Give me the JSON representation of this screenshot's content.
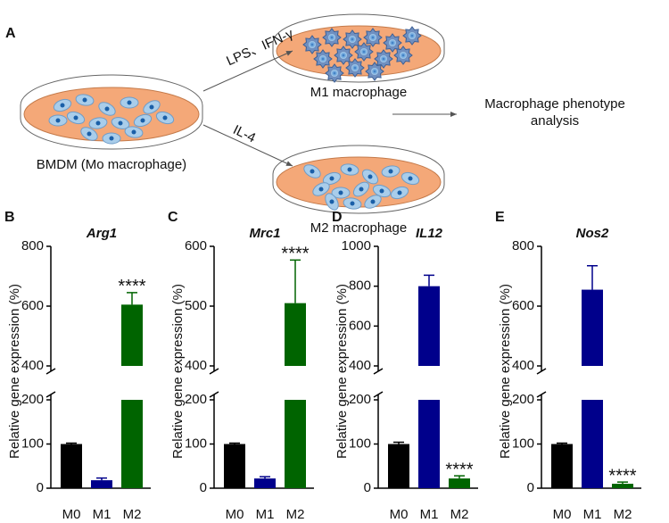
{
  "diagram": {
    "panel_label": "A",
    "bmdm_label": "BMDM (Mo macrophage)",
    "m1_treatment": "LPS、IFN-γ",
    "m1_label": "M1 macrophage",
    "m2_treatment": "IL-4",
    "m2_label": "M2 macrophage",
    "analysis_label": [
      "Macrophage phenotype",
      "analysis"
    ]
  },
  "chart_data": [
    {
      "type": "bar",
      "panel_label": "B",
      "title": "Arg1",
      "y_label": "Relative gene expression (%)",
      "categories": [
        "M0",
        "M1",
        "M2"
      ],
      "values": [
        100,
        18,
        605
      ],
      "errors": [
        2,
        5,
        40
      ],
      "colors": [
        "#000000",
        "#00008b",
        "#006400"
      ],
      "significance": [
        null,
        null,
        "****"
      ],
      "ylim": [
        0,
        800
      ],
      "y_break": [
        200,
        400
      ],
      "yticks": [
        0,
        100,
        200,
        400,
        600,
        800
      ]
    },
    {
      "type": "bar",
      "panel_label": "C",
      "title": "Mrc1",
      "y_label": "Relative gene expression (%)",
      "categories": [
        "M0",
        "M1",
        "M2"
      ],
      "values": [
        100,
        22,
        505
      ],
      "errors": [
        2,
        4,
        72
      ],
      "colors": [
        "#000000",
        "#00008b",
        "#006400"
      ],
      "significance": [
        null,
        null,
        "****"
      ],
      "ylim": [
        0,
        600
      ],
      "y_break": [
        200,
        400
      ],
      "yticks": [
        0,
        100,
        200,
        400,
        500,
        600
      ]
    },
    {
      "type": "bar",
      "panel_label": "D",
      "title": "IL12",
      "y_label": "Relative gene expression (%)",
      "categories": [
        "M0",
        "M1",
        "M2"
      ],
      "values": [
        100,
        800,
        22
      ],
      "errors": [
        4,
        55,
        6
      ],
      "colors": [
        "#000000",
        "#00008b",
        "#006400"
      ],
      "significance": [
        null,
        null,
        "****"
      ],
      "ylim": [
        0,
        1000
      ],
      "y_break": [
        200,
        400
      ],
      "yticks": [
        0,
        100,
        200,
        400,
        600,
        800,
        1000
      ]
    },
    {
      "type": "bar",
      "panel_label": "E",
      "title": "Nos2",
      "y_label": "Relative gene expression (%)",
      "categories": [
        "M0",
        "M1",
        "M2"
      ],
      "values": [
        100,
        655,
        10
      ],
      "errors": [
        2,
        80,
        4
      ],
      "colors": [
        "#000000",
        "#00008b",
        "#006400"
      ],
      "significance": [
        null,
        null,
        "****"
      ],
      "ylim": [
        0,
        800
      ],
      "y_break": [
        200,
        400
      ],
      "yticks": [
        0,
        100,
        200,
        400,
        600,
        800
      ]
    }
  ]
}
